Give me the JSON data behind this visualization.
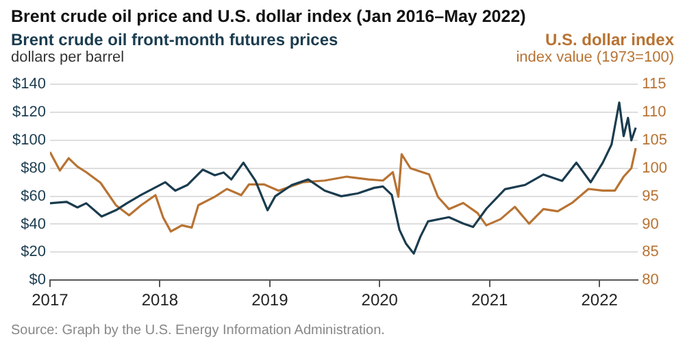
{
  "chart_data": {
    "type": "line",
    "title": "Brent crude oil price and U.S. dollar index (Jan 2016–May 2022)",
    "ylabel": "dollars per barrel",
    "y2label": "index value (1973=100)",
    "annotations": [
      "Source: Graph by the U.S. Energy Information Administration."
    ],
    "xlim": [
      2017,
      2022.35
    ],
    "xticks": [
      2017,
      2018,
      2019,
      2020,
      2021,
      2022
    ],
    "ylim": [
      0,
      140
    ],
    "yticks": [
      {
        "value": 0,
        "label": "$0"
      },
      {
        "value": 20,
        "label": "$20"
      },
      {
        "value": 40,
        "label": "$40"
      },
      {
        "value": 60,
        "label": "$60"
      },
      {
        "value": 80,
        "label": "$80"
      },
      {
        "value": 100,
        "label": "$100"
      },
      {
        "value": 120,
        "label": "$120"
      },
      {
        "value": 140,
        "label": "$140"
      }
    ],
    "y2lim": [
      80,
      115
    ],
    "y2ticks": [
      80,
      85,
      90,
      95,
      100,
      105,
      110,
      115
    ],
    "grid": "y",
    "legend": false,
    "marker": "none",
    "line_style": "solid",
    "series": [
      {
        "name": "Brent crude oil front-month futures prices",
        "color": "#1b3c4f",
        "x": [
          2017.0,
          2017.15,
          2017.25,
          2017.33,
          2017.47,
          2017.6,
          2017.7,
          2017.83,
          2017.94,
          2018.05,
          2018.14,
          2018.25,
          2018.39,
          2018.5,
          2018.58,
          2018.65,
          2018.76,
          2018.87,
          2018.98,
          2019.05,
          2019.2,
          2019.35,
          2019.5,
          2019.65,
          2019.8,
          2019.95,
          2020.03,
          2020.11,
          2020.18,
          2020.24,
          2020.31,
          2020.37,
          2020.44,
          2020.63,
          2020.76,
          2020.85,
          2020.97,
          2021.14,
          2021.32,
          2021.49,
          2021.66,
          2021.79,
          2021.92,
          2022.03,
          2022.11,
          2022.18,
          2022.22,
          2022.26,
          2022.29,
          2022.33
        ],
        "values": [
          55,
          56,
          52,
          55,
          45.5,
          50,
          55,
          61,
          65.5,
          70,
          64,
          68,
          79,
          75,
          77,
          72,
          84,
          71,
          50,
          60,
          68,
          72,
          64,
          60,
          62,
          66,
          67,
          61,
          36,
          26,
          19,
          31,
          42,
          45,
          40.5,
          38,
          51,
          65,
          68,
          75.5,
          71,
          84,
          70,
          84,
          97,
          127,
          103,
          116,
          100,
          109
        ]
      },
      {
        "name": "U.S. dollar index",
        "color": "#b87333",
        "axis": "y2",
        "x": [
          2017.0,
          2017.09,
          2017.17,
          2017.25,
          2017.33,
          2017.46,
          2017.6,
          2017.72,
          2017.83,
          2017.96,
          2018.03,
          2018.1,
          2018.2,
          2018.29,
          2018.35,
          2018.5,
          2018.61,
          2018.74,
          2018.81,
          2018.95,
          2019.08,
          2019.3,
          2019.5,
          2019.7,
          2019.9,
          2020.03,
          2020.12,
          2020.17,
          2020.2,
          2020.28,
          2020.45,
          2020.53,
          2020.63,
          2020.76,
          2020.89,
          2020.97,
          2021.1,
          2021.23,
          2021.36,
          2021.49,
          2021.62,
          2021.75,
          2021.9,
          2022.03,
          2022.14,
          2022.22,
          2022.29,
          2022.33
        ],
        "values": [
          102.9,
          99.6,
          101.8,
          100.3,
          99.3,
          97.4,
          93.4,
          91.6,
          93.4,
          95.2,
          91.2,
          88.7,
          89.8,
          89.4,
          93.4,
          94.9,
          96.3,
          95.2,
          97.1,
          97.1,
          96,
          97.5,
          97.8,
          98.5,
          98,
          97.8,
          99.3,
          94.9,
          102.5,
          100,
          98.9,
          94.9,
          92.7,
          93.8,
          92,
          89.8,
          90.9,
          93.1,
          90.1,
          92.7,
          92.3,
          93.8,
          96.3,
          96,
          96,
          98.5,
          100,
          103.6
        ]
      }
    ]
  }
}
